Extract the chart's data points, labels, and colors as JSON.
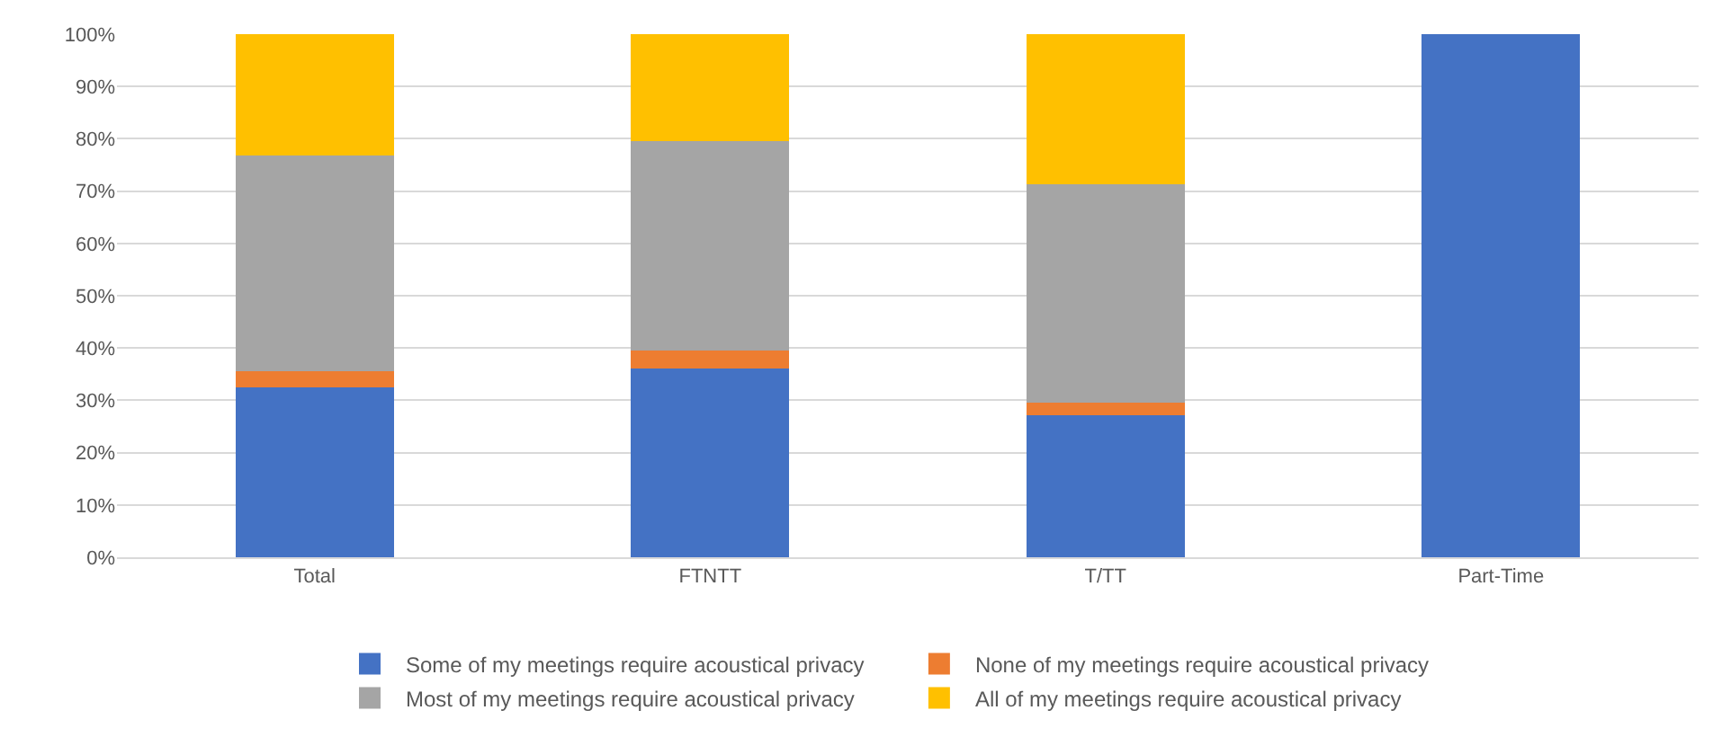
{
  "chart_data": {
    "type": "bar",
    "stacked": true,
    "categories": [
      "Total",
      "FTNTT",
      "T/TT",
      "Part-Time"
    ],
    "series": [
      {
        "name": "Some of my meetings require acoustical privacy",
        "color": "#4472c4",
        "values": [
          32.5,
          36,
          27.2,
          100
        ]
      },
      {
        "name": "None of my meetings require acoustical privacy",
        "color": "#ed7d31",
        "values": [
          3,
          3.5,
          2.3,
          0
        ]
      },
      {
        "name": "Most of my meetings require acoustical privacy",
        "color": "#a5a5a5",
        "values": [
          41.3,
          40,
          41.8,
          0
        ]
      },
      {
        "name": "All of my meetings require acoustical privacy",
        "color": "#ffc000",
        "values": [
          23.2,
          20.5,
          28.7,
          0
        ]
      }
    ],
    "ylim": [
      0,
      100
    ],
    "yticks": [
      {
        "value": 0,
        "label": "0%"
      },
      {
        "value": 10,
        "label": "10%"
      },
      {
        "value": 20,
        "label": "20%"
      },
      {
        "value": 30,
        "label": "30%"
      },
      {
        "value": 40,
        "label": "40%"
      },
      {
        "value": 50,
        "label": "50%"
      },
      {
        "value": 60,
        "label": "60%"
      },
      {
        "value": 70,
        "label": "70%"
      },
      {
        "value": 80,
        "label": "80%"
      },
      {
        "value": 90,
        "label": "90%"
      },
      {
        "value": 100,
        "label": "100%"
      }
    ],
    "grid": "y",
    "legend": "bottom"
  }
}
